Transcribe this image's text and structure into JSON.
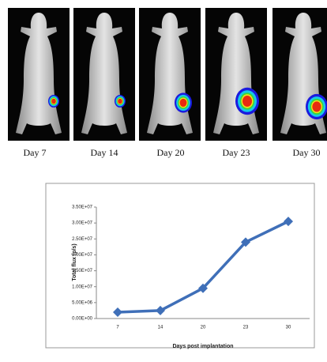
{
  "images": {
    "labels": [
      "Day 7",
      "Day 14",
      "Day 20",
      "Day 23",
      "Day 30"
    ]
  },
  "chart_data": {
    "type": "line",
    "y_label": "Total flux (p/s)",
    "x_label": "Days post implantation",
    "categories": [
      "7",
      "14",
      "20",
      "23",
      "30"
    ],
    "values": [
      2000000,
      2500000,
      9500000,
      24000000,
      30500000
    ],
    "color": "#3f6fb8",
    "ylim": [
      0,
      35000000
    ],
    "yticks": [
      {
        "value": 0,
        "label": "0.00E+00"
      },
      {
        "value": 5000000,
        "label": "5.00E+06"
      },
      {
        "value": 10000000,
        "label": "1.00E+07"
      },
      {
        "value": 15000000,
        "label": "1.50E+07"
      },
      {
        "value": 20000000,
        "label": "2.00E+07"
      },
      {
        "value": 25000000,
        "label": "2.50E+07"
      },
      {
        "value": 30000000,
        "label": "3.00E+07"
      },
      {
        "value": 35000000,
        "label": "3.50E+07"
      }
    ],
    "grid": false
  }
}
